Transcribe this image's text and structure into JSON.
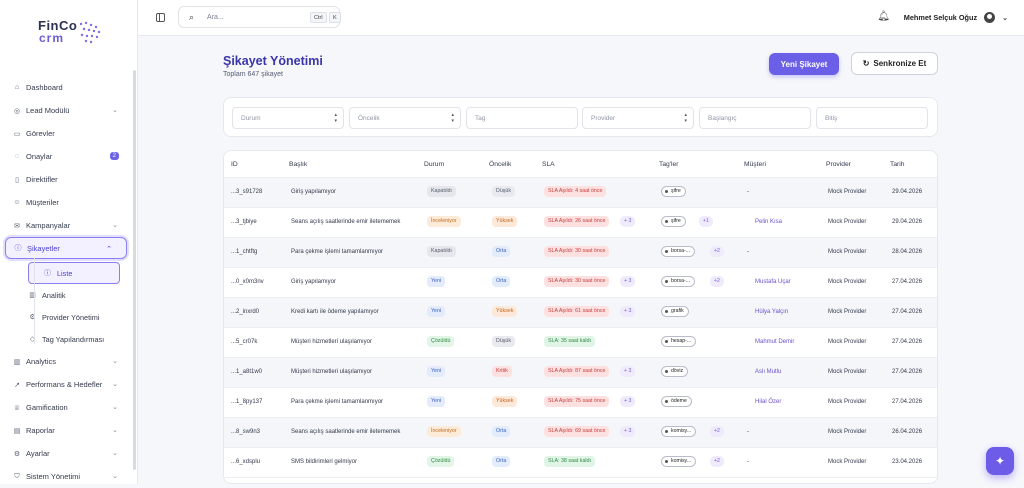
{
  "app": {
    "logo_line1": "FinCo",
    "logo_line2": "crm"
  },
  "sidebar": {
    "items": [
      {
        "label": "Dashboard",
        "icon": "home-icon"
      },
      {
        "label": "Lead Modülü",
        "icon": "target-icon",
        "chevron": true
      },
      {
        "label": "Görevler",
        "icon": "clipboard-icon"
      },
      {
        "label": "Onaylar",
        "icon": "check-circle-icon",
        "badge": "2"
      },
      {
        "label": "Direktifler",
        "icon": "document-icon"
      },
      {
        "label": "Müşteriler",
        "icon": "users-icon"
      },
      {
        "label": "Kampanyalar",
        "icon": "mail-icon",
        "chevron": true
      },
      {
        "label": "Şikayetler",
        "icon": "alert-circle-icon",
        "chevron": true,
        "active": true
      }
    ],
    "sub_items": [
      {
        "label": "Liste",
        "icon": "info-icon",
        "active": true
      },
      {
        "label": "Analitik",
        "icon": "bar-chart-icon"
      },
      {
        "label": "Provider Yönetimi",
        "icon": "gear-icon"
      },
      {
        "label": "Tag Yapılandırması",
        "icon": "tag-icon"
      }
    ],
    "items_bottom": [
      {
        "label": "Analytics",
        "icon": "bar-chart-icon",
        "chevron": true
      },
      {
        "label": "Performans & Hedefler",
        "icon": "trend-icon",
        "chevron": true
      },
      {
        "label": "Gamification",
        "icon": "trophy-icon",
        "chevron": true
      },
      {
        "label": "Raporlar",
        "icon": "file-icon",
        "chevron": true
      },
      {
        "label": "Ayarlar",
        "icon": "gear-icon",
        "chevron": true
      },
      {
        "label": "Sistem Yönetimi",
        "icon": "shield-icon",
        "chevron": true
      }
    ]
  },
  "topbar": {
    "search_placeholder": "Ara...",
    "kbd1": "Ctrl",
    "kbd2": "K",
    "user_name": "Mehmet Selçuk Oğuz"
  },
  "page": {
    "title": "Şikayet Yönetimi",
    "subtitle": "Toplam 647 şikayet",
    "new_button": "Yeni Şikayet",
    "sync_button": "Senkronize Et"
  },
  "filters": {
    "durum": "Durum",
    "oncelik": "Öncelik",
    "tag": "Tag",
    "provider": "Provider",
    "baslangic": "Başlangıç",
    "bitis": "Bitiş"
  },
  "table": {
    "columns": [
      "ID",
      "Başlık",
      "Durum",
      "Öncelik",
      "SLA",
      "Tag'ler",
      "Müşteri",
      "Provider",
      "Tarih"
    ],
    "rows": [
      {
        "id": "...3_s91728",
        "title": "Giriş yapılamıyor",
        "status": "Kapatıldı",
        "priority": "Düşük",
        "sla": "SLA Aşıldı: 4 saat önce",
        "sla_kind": "over",
        "sla_extra": "",
        "tag": "şifre",
        "tag_extra": "",
        "customer": "-",
        "provider": "Mock Provider",
        "date": "29.04.2026"
      },
      {
        "id": "...3_tjbiye",
        "title": "Seans açılış saatlerinde emir iletememek",
        "status": "İnceleniyor",
        "priority": "Yüksek",
        "sla": "SLA Aşıldı: 26 saat önce",
        "sla_kind": "over",
        "sla_extra": "+ 3",
        "tag": "şifre",
        "tag_extra": "+1",
        "customer": "Pelin Kısa",
        "provider": "Mock Provider",
        "date": "29.04.2026"
      },
      {
        "id": "...1_chtftg",
        "title": "Para çekme işlemi tamamlanmıyor",
        "status": "Kapatıldı",
        "priority": "Orta",
        "sla": "SLA Aşıldı: 30 saat önce",
        "sla_kind": "over",
        "sla_extra": "",
        "tag": "borsa-...",
        "tag_extra": "+2",
        "customer": "-",
        "provider": "Mock Provider",
        "date": "28.04.2026"
      },
      {
        "id": "...0_x0m3nv",
        "title": "Giriş yapılamıyor",
        "status": "Yeni",
        "priority": "Orta",
        "sla": "SLA Aşıldı: 30 saat önce",
        "sla_kind": "over",
        "sla_extra": "+ 3",
        "tag": "borsa-...",
        "tag_extra": "+2",
        "customer": "Mustafa Uçar",
        "provider": "Mock Provider",
        "date": "27.04.2026"
      },
      {
        "id": "...2_inxrd0",
        "title": "Kredi kartı ile ödeme yapılamıyor",
        "status": "Yeni",
        "priority": "Yüksek",
        "sla": "SLA Aşıldı: 61 saat önce",
        "sla_kind": "over",
        "sla_extra": "+ 3",
        "tag": "grafik",
        "tag_extra": "",
        "customer": "Hülya Yalçın",
        "provider": "Mock Provider",
        "date": "27.04.2026"
      },
      {
        "id": "...5_cr07k",
        "title": "Müşteri hizmetleri ulaşılamıyor",
        "status": "Çözüldü",
        "priority": "Düşük",
        "sla": "SLA: 35 saat kaldı",
        "sla_kind": "ok",
        "sla_extra": "",
        "tag": "hesap-...",
        "tag_extra": "",
        "customer": "Mahmut Demir",
        "provider": "Mock Provider",
        "date": "27.04.2026"
      },
      {
        "id": "...1_a8t1w0",
        "title": "Müşteri hizmetleri ulaşılamıyor",
        "status": "Yeni",
        "priority": "Kritik",
        "sla": "SLA Aşıldı: 87 saat önce",
        "sla_kind": "over",
        "sla_extra": "+ 3",
        "tag": "döviz",
        "tag_extra": "",
        "customer": "Aslı Mutlu",
        "provider": "Mock Provider",
        "date": "27.04.2026"
      },
      {
        "id": "...1_8py137",
        "title": "Para çekme işlemi tamamlanmıyor",
        "status": "Yeni",
        "priority": "Yüksek",
        "sla": "SLA Aşıldı: 75 saat önce",
        "sla_kind": "over",
        "sla_extra": "+ 3",
        "tag": "ödeme",
        "tag_extra": "",
        "customer": "Hilal Özer",
        "provider": "Mock Provider",
        "date": "27.04.2026"
      },
      {
        "id": "...8_sw9n3",
        "title": "Seans açılış saatlerinde emir iletememek",
        "status": "İnceleniyor",
        "priority": "Orta",
        "sla": "SLA Aşıldı: 69 saat önce",
        "sla_kind": "over",
        "sla_extra": "+ 3",
        "tag": "komisy...",
        "tag_extra": "+2",
        "customer": "-",
        "provider": "Mock Provider",
        "date": "26.04.2026"
      },
      {
        "id": "...6_xdsplu",
        "title": "SMS bildirimleri gelmiyor",
        "status": "Çözüldü",
        "priority": "Orta",
        "sla": "SLA: 38 saat kaldı",
        "sla_kind": "ok",
        "sla_extra": "",
        "tag": "komisy...",
        "tag_extra": "+2",
        "customer": "-",
        "provider": "Mock Provider",
        "date": "23.04.2026"
      }
    ]
  },
  "colors": {
    "accent": "#6b5fe7",
    "status_kapatildi": "#e6e7ec",
    "status_yeni": "#e4ebfb",
    "status_inceleniyor": "#fdebd9",
    "status_cozuldu": "#e2f5e6",
    "priority_dusuk": "#e9eaef",
    "priority_yuksek": "#fde9d9",
    "priority_orta": "#e3ecfb",
    "priority_kritik": "#fde0e0",
    "sla_over": "#fde1e1",
    "sla_ok": "#e0f5e6"
  }
}
